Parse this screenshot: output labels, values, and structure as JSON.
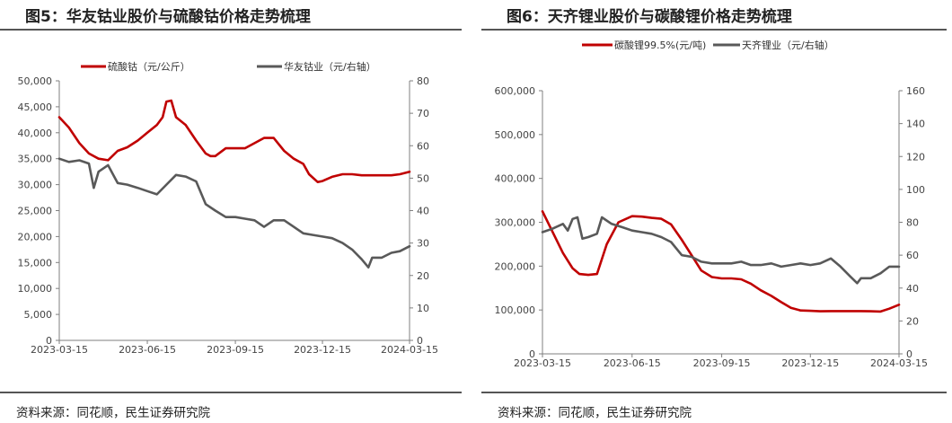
{
  "figures": [
    {
      "title": "图5：华友钴业股价与硫酸钴价格走势梳理",
      "source": "资料来源：同花顺，民生证券研究院"
    },
    {
      "title": "图6：天齐锂业股价与碳酸锂价格走势梳理",
      "source": "资料来源：同花顺，民生证券研究院"
    }
  ],
  "chart_data": [
    {
      "type": "line",
      "title": "",
      "x_ticks": [
        "2023-03-15",
        "2023-06-15",
        "2023-09-15",
        "2023-12-15",
        "2024-03-15"
      ],
      "left_axis": {
        "ylim": [
          0,
          50000
        ],
        "ticks": [
          "0",
          "5,000",
          "10,000",
          "15,000",
          "20,000",
          "25,000",
          "30,000",
          "35,000",
          "40,000",
          "45,000",
          "50,000"
        ]
      },
      "right_axis": {
        "ylim": [
          0,
          80
        ],
        "ticks": [
          "0",
          "10",
          "20",
          "30",
          "40",
          "50",
          "60",
          "70",
          "80"
        ]
      },
      "legend_position": "top",
      "grid": false,
      "series": [
        {
          "name": "硫酸钴（元/公斤）",
          "axis": "left",
          "color": "#c00000",
          "x": [
            "2023-03-15",
            "2023-03-25",
            "2023-04-05",
            "2023-04-15",
            "2023-04-25",
            "2023-05-05",
            "2023-05-15",
            "2023-05-25",
            "2023-06-05",
            "2023-06-15",
            "2023-06-25",
            "2023-07-01",
            "2023-07-05",
            "2023-07-10",
            "2023-07-15",
            "2023-07-25",
            "2023-08-05",
            "2023-08-15",
            "2023-08-20",
            "2023-08-25",
            "2023-09-05",
            "2023-09-15",
            "2023-09-25",
            "2023-10-05",
            "2023-10-15",
            "2023-10-25",
            "2023-11-05",
            "2023-11-15",
            "2023-11-25",
            "2023-12-01",
            "2023-12-10",
            "2023-12-15",
            "2023-12-25",
            "2024-01-05",
            "2024-01-15",
            "2024-01-25",
            "2024-02-05",
            "2024-02-15",
            "2024-02-25",
            "2024-03-05",
            "2024-03-15"
          ],
          "values": [
            43000,
            41000,
            38000,
            36000,
            35000,
            34700,
            36500,
            37200,
            38500,
            40000,
            41500,
            43000,
            46000,
            46200,
            43000,
            41500,
            38500,
            36000,
            35500,
            35500,
            37000,
            37000,
            37000,
            38000,
            39000,
            39000,
            36500,
            35000,
            34000,
            32000,
            30500,
            30700,
            31500,
            32000,
            32000,
            31800,
            31800,
            31800,
            31800,
            32000,
            32500
          ]
        },
        {
          "name": "华友钴业（元/右轴）",
          "axis": "right",
          "color": "#595959",
          "x": [
            "2023-03-15",
            "2023-03-25",
            "2023-04-05",
            "2023-04-15",
            "2023-04-20",
            "2023-04-25",
            "2023-05-05",
            "2023-05-15",
            "2023-05-25",
            "2023-06-05",
            "2023-06-15",
            "2023-06-25",
            "2023-07-05",
            "2023-07-15",
            "2023-07-25",
            "2023-08-05",
            "2023-08-15",
            "2023-08-25",
            "2023-09-05",
            "2023-09-15",
            "2023-09-25",
            "2023-10-05",
            "2023-10-15",
            "2023-10-25",
            "2023-11-05",
            "2023-11-15",
            "2023-11-25",
            "2023-12-05",
            "2023-12-15",
            "2023-12-25",
            "2024-01-05",
            "2024-01-15",
            "2024-01-25",
            "2024-02-01",
            "2024-02-05",
            "2024-02-15",
            "2024-02-25",
            "2024-03-05",
            "2024-03-15"
          ],
          "values": [
            56,
            55,
            55.5,
            54.5,
            47,
            52,
            54,
            48.5,
            48,
            47,
            46,
            45,
            48,
            51,
            50.5,
            49,
            42,
            40,
            38,
            38,
            37.5,
            37,
            35,
            37,
            37,
            35,
            33,
            32.5,
            32,
            31.5,
            30,
            28,
            25,
            22.5,
            25.5,
            25.5,
            27,
            27.5,
            29
          ]
        }
      ]
    },
    {
      "type": "line",
      "title": "",
      "x_ticks": [
        "2023-03-15",
        "2023-06-15",
        "2023-09-15",
        "2023-12-15",
        "2024-03-15"
      ],
      "left_axis": {
        "ylim": [
          0,
          600000
        ],
        "ticks": [
          "0",
          "100,000",
          "200,000",
          "300,000",
          "400,000",
          "500,000",
          "600,000"
        ]
      },
      "right_axis": {
        "ylim": [
          0,
          160
        ],
        "ticks": [
          "0",
          "20",
          "40",
          "60",
          "80",
          "100",
          "120",
          "140",
          "160"
        ]
      },
      "legend_position": "top",
      "grid": false,
      "series": [
        {
          "name": "碳酸锂99.5%(元/吨)",
          "axis": "left",
          "color": "#c00000",
          "x": [
            "2023-03-15",
            "2023-03-25",
            "2023-04-05",
            "2023-04-15",
            "2023-04-22",
            "2023-05-01",
            "2023-05-10",
            "2023-05-20",
            "2023-06-01",
            "2023-06-15",
            "2023-06-25",
            "2023-07-05",
            "2023-07-15",
            "2023-07-25",
            "2023-08-05",
            "2023-08-15",
            "2023-08-25",
            "2023-09-05",
            "2023-09-15",
            "2023-09-25",
            "2023-10-05",
            "2023-10-15",
            "2023-10-25",
            "2023-11-05",
            "2023-11-15",
            "2023-11-25",
            "2023-12-05",
            "2023-12-15",
            "2023-12-25",
            "2024-01-05",
            "2024-01-15",
            "2024-01-25",
            "2024-02-05",
            "2024-02-15",
            "2024-02-25",
            "2024-03-05",
            "2024-03-15"
          ],
          "values": [
            325000,
            280000,
            230000,
            195000,
            182000,
            180000,
            182000,
            250000,
            300000,
            314000,
            313000,
            310000,
            308000,
            295000,
            260000,
            225000,
            190000,
            175000,
            172000,
            172000,
            170000,
            160000,
            145000,
            132000,
            118000,
            105000,
            99000,
            98000,
            97000,
            97500,
            97500,
            97500,
            97500,
            97000,
            96500,
            103000,
            112000
          ]
        },
        {
          "name": "天齐锂业（元/右轴）",
          "axis": "right",
          "color": "#595959",
          "x": [
            "2023-03-15",
            "2023-03-25",
            "2023-04-05",
            "2023-04-10",
            "2023-04-15",
            "2023-04-20",
            "2023-04-25",
            "2023-05-01",
            "2023-05-10",
            "2023-05-15",
            "2023-05-25",
            "2023-06-05",
            "2023-06-15",
            "2023-06-25",
            "2023-07-05",
            "2023-07-15",
            "2023-07-25",
            "2023-08-05",
            "2023-08-15",
            "2023-08-25",
            "2023-09-05",
            "2023-09-15",
            "2023-09-25",
            "2023-10-05",
            "2023-10-15",
            "2023-10-25",
            "2023-11-05",
            "2023-11-15",
            "2023-11-25",
            "2023-12-05",
            "2023-12-15",
            "2023-12-25",
            "2024-01-05",
            "2024-01-15",
            "2024-01-25",
            "2024-02-01",
            "2024-02-05",
            "2024-02-15",
            "2024-02-25",
            "2024-03-05",
            "2024-03-15"
          ],
          "values": [
            74,
            76,
            79,
            75,
            82,
            83,
            70,
            71,
            73,
            83,
            79,
            77,
            75,
            74,
            73,
            71,
            68,
            60,
            59,
            56,
            55,
            55,
            55,
            56,
            54,
            54,
            55,
            53,
            54,
            55,
            54,
            55,
            58,
            53,
            47,
            43,
            46,
            46,
            49,
            53,
            53
          ]
        }
      ]
    }
  ]
}
